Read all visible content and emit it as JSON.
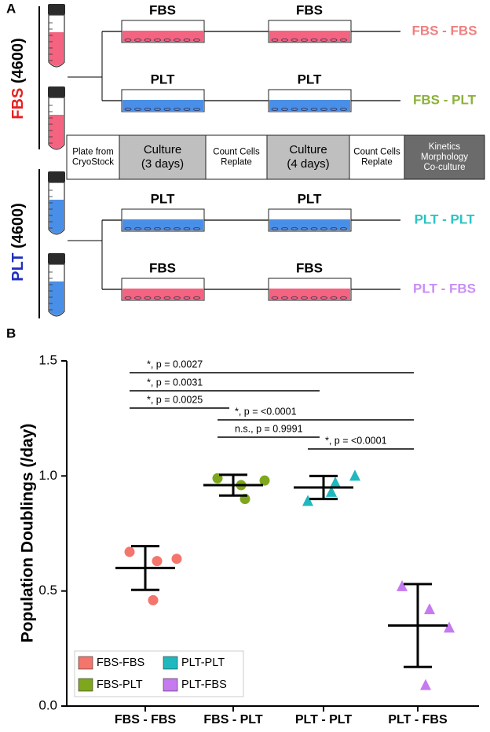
{
  "panel_a": {
    "label": "A",
    "groups": [
      {
        "name": "FBS",
        "count": "(4600)"
      },
      {
        "name": "PLT",
        "count": "(4600)"
      }
    ],
    "rows": [
      {
        "media": [
          "FBS",
          "FBS"
        ],
        "result": "FBS - FBS"
      },
      {
        "media": [
          "PLT",
          "PLT"
        ],
        "result": "FBS - PLT"
      },
      {
        "media": [
          "PLT",
          "PLT"
        ],
        "result": "PLT - PLT"
      },
      {
        "media": [
          "FBS",
          "FBS"
        ],
        "result": "PLT - FBS"
      }
    ],
    "steps": [
      [
        "Plate from",
        "CryoStock"
      ],
      [
        "Culture",
        "(3 days)"
      ],
      [
        "Count Cells",
        "Replate"
      ],
      [
        "Culture",
        "(4 days)"
      ],
      [
        "Count Cells",
        "Replate"
      ],
      [
        "Kinetics",
        "Morphology",
        "Co-culture"
      ]
    ]
  },
  "chart_data": {
    "type": "dot",
    "panel_label": "B",
    "y_label": "Population Doublings (/day)",
    "categories": [
      "FBS - FBS",
      "FBS - PLT",
      "PLT - PLT",
      "PLT - FBS"
    ],
    "ylim": [
      0,
      1.5
    ],
    "yticks": [
      {
        "value": 0,
        "label": "0.0"
      },
      0.5,
      {
        "value": 1,
        "label": "1.0"
      },
      {
        "value": 1.5,
        "label": "1.5"
      }
    ],
    "series": [
      {
        "name": "FBS-FBS",
        "color": "#f4756b",
        "marker": "circle",
        "values": [
          0.67,
          0.63,
          0.64,
          0.46
        ],
        "mean": 0.6,
        "error": 0.095
      },
      {
        "name": "FBS-PLT",
        "color": "#7fa71d",
        "marker": "circle",
        "values": [
          0.99,
          0.9,
          0.98,
          0.96
        ],
        "mean": 0.96,
        "error": 0.045
      },
      {
        "name": "PLT-PLT",
        "color": "#1fb8bf",
        "marker": "triangle",
        "values": [
          0.89,
          0.97,
          1.0,
          0.93
        ],
        "mean": 0.95,
        "error": 0.05
      },
      {
        "name": "PLT-FBS",
        "color": "#c57af0",
        "marker": "triangle",
        "values": [
          0.52,
          0.42,
          0.34,
          0.09
        ],
        "mean": 0.35,
        "error": 0.18
      }
    ],
    "annotations": [
      {
        "text": "*, p = 0.0027",
        "between": [
          "FBS - FBS",
          "PLT - FBS"
        ]
      },
      {
        "text": "*, p = 0.0031",
        "between": [
          "FBS - FBS",
          "PLT - PLT"
        ]
      },
      {
        "text": "*, p = 0.0025",
        "between": [
          "FBS - FBS",
          "FBS - PLT"
        ]
      },
      {
        "text": "*, p = <0.0001",
        "between": [
          "FBS - PLT",
          "PLT - FBS"
        ]
      },
      {
        "text": "n.s., p = 0.9991",
        "between": [
          "FBS - PLT",
          "PLT - PLT"
        ]
      },
      {
        "text": "*, p = <0.0001",
        "between": [
          "PLT - PLT",
          "PLT - FBS"
        ]
      }
    ]
  }
}
